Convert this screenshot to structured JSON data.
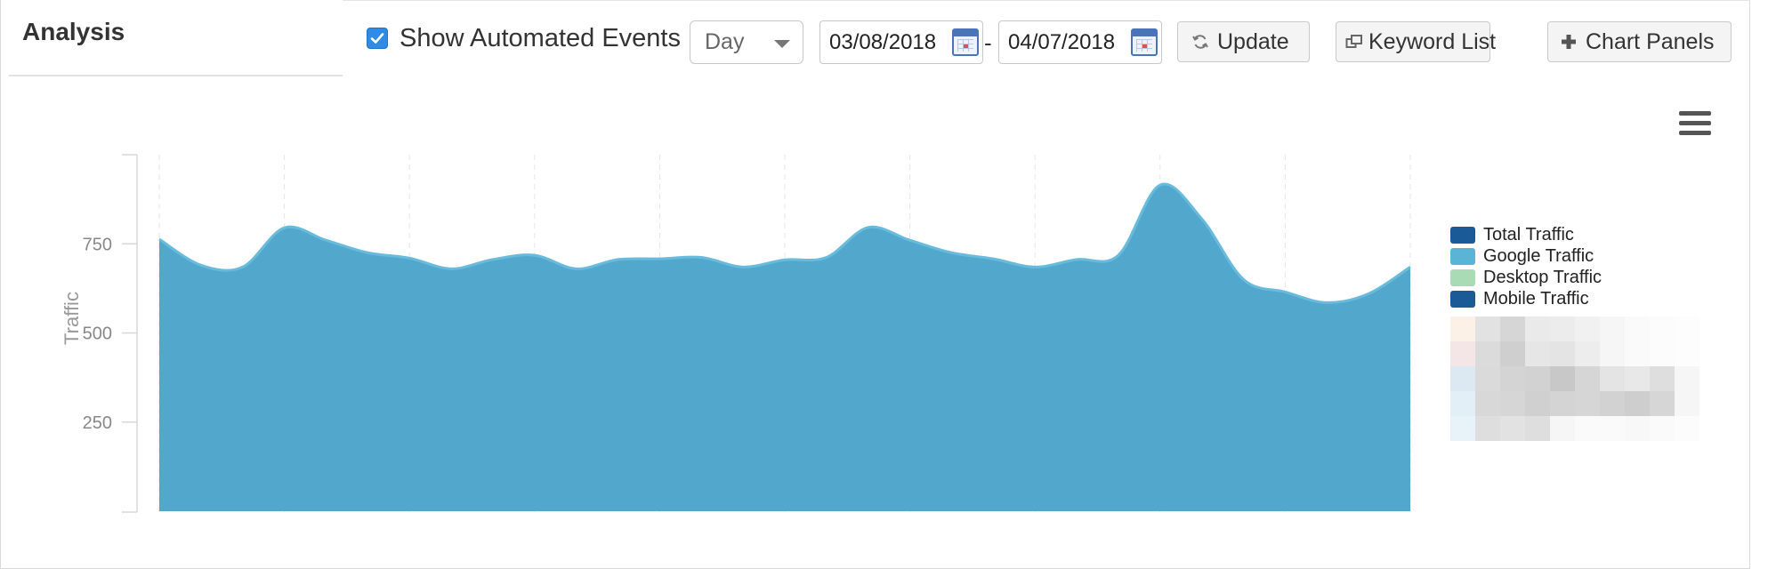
{
  "header": {
    "title": "Analysis"
  },
  "toolbar": {
    "show_automated_events_label": "Show Automated Events",
    "show_automated_events_checked": true,
    "interval_value": "Day",
    "date_start": "03/08/2018",
    "date_separator": "-",
    "date_end": "04/07/2018",
    "update_label": "Update",
    "keyword_list_label": "Keyword List",
    "chart_panels_label": "Chart Panels",
    "icons": {
      "update": "refresh-icon",
      "keyword_list": "external-window-icon",
      "chart_panels": "plus-icon",
      "calendar": "calendar-icon",
      "menu": "hamburger-menu-icon"
    }
  },
  "chart_data": {
    "type": "area",
    "ylabel": "Traffic",
    "y_ticks": [
      "250",
      "500",
      "750"
    ],
    "ylim": [
      0,
      1000
    ],
    "grid": "vertical dashed",
    "legend_position": "right",
    "x_count": 31,
    "series": [
      {
        "name": "Google Traffic",
        "color": "#52a8cc",
        "values": [
          763,
          690,
          685,
          795,
          760,
          725,
          710,
          680,
          706,
          718,
          680,
          706,
          708,
          712,
          685,
          705,
          712,
          796,
          760,
          725,
          708,
          685,
          706,
          718,
          915,
          820,
          650,
          615,
          585,
          610,
          685
        ]
      }
    ],
    "legend": [
      {
        "name": "Total Traffic",
        "color": "#1a5a96"
      },
      {
        "name": "Google Traffic",
        "color": "#5ab4d6"
      },
      {
        "name": "Desktop Traffic",
        "color": "#a9dcb4"
      },
      {
        "name": "Mobile Traffic",
        "color": "#1a5a96"
      }
    ]
  }
}
